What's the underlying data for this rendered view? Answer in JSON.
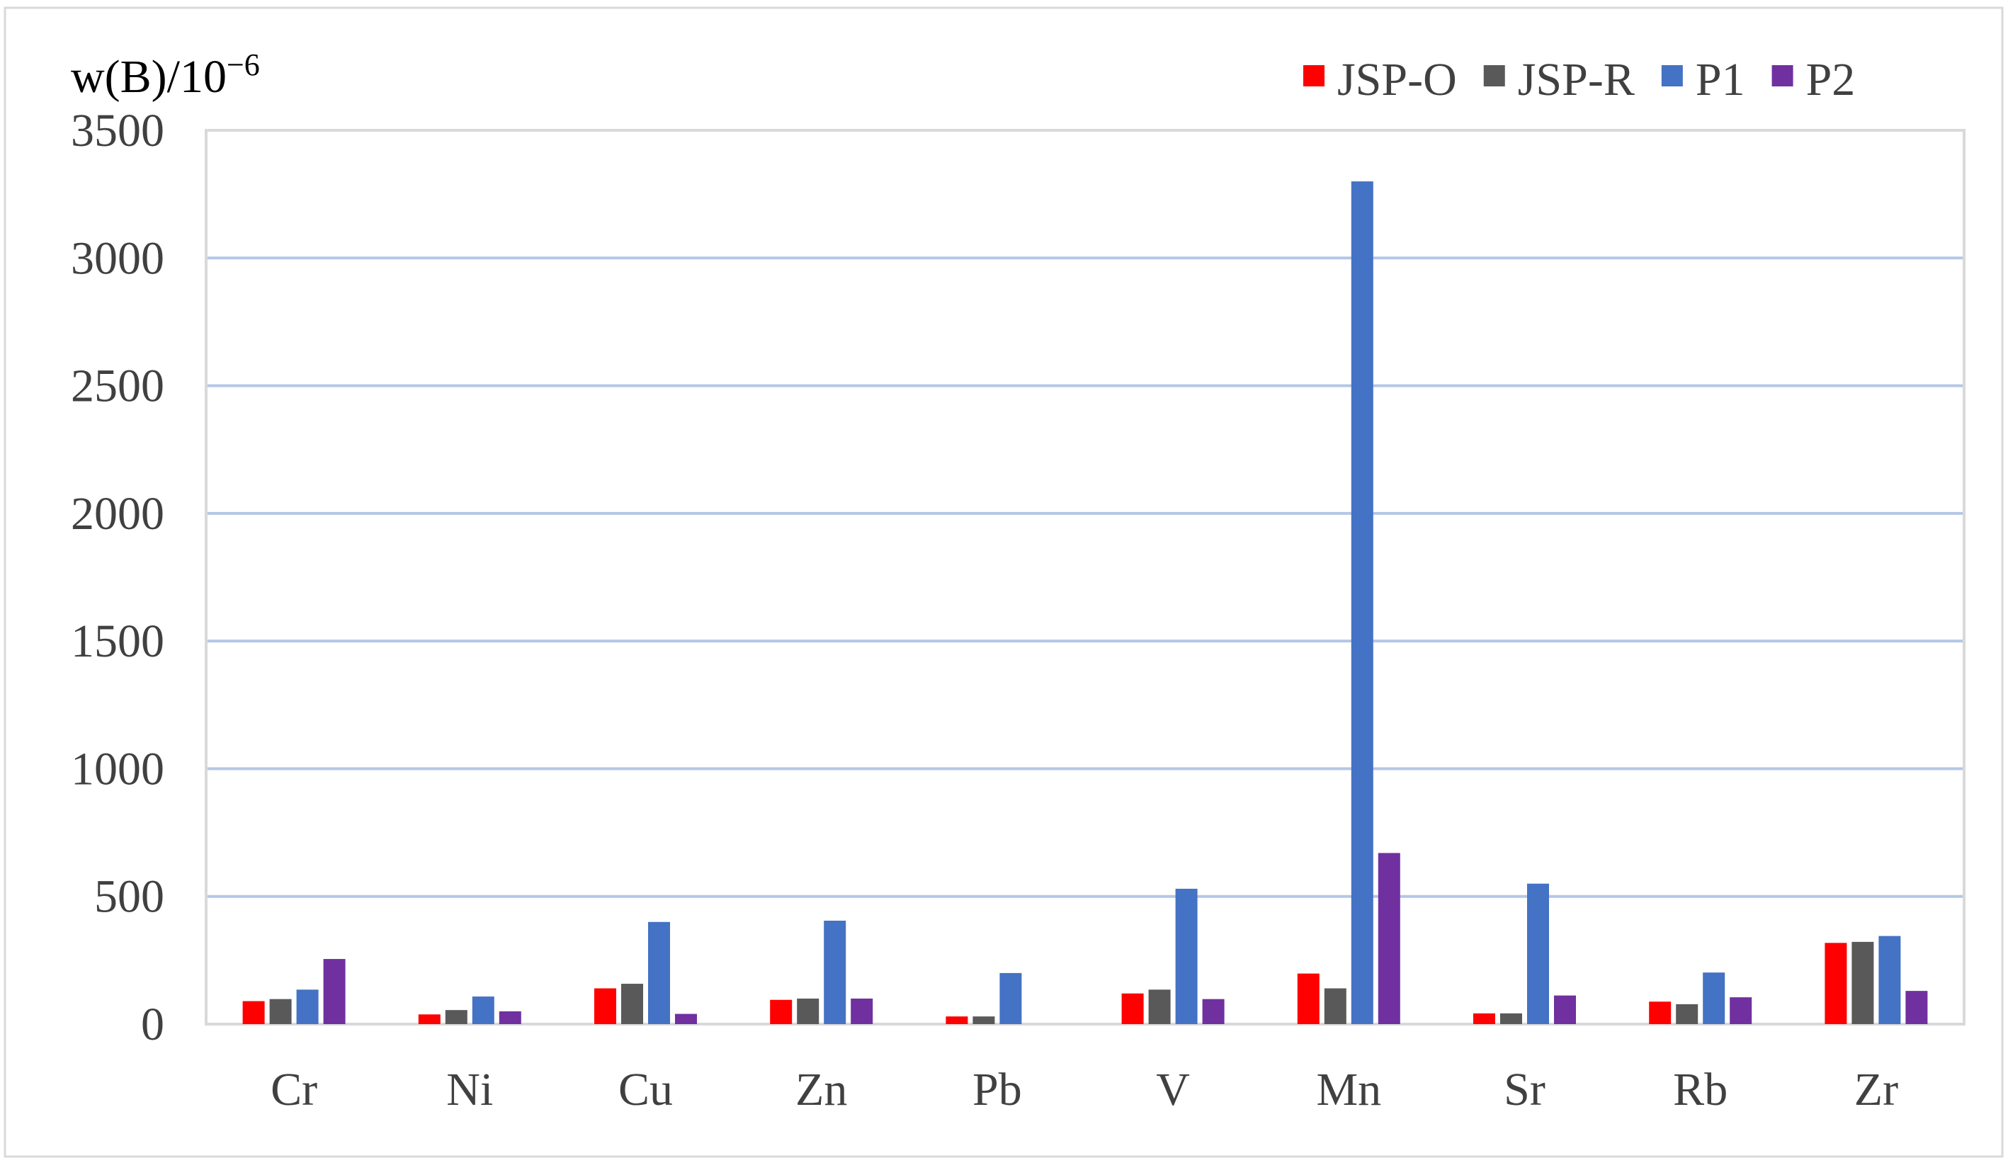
{
  "chart_data": {
    "type": "bar",
    "ylabel_base": "w(B)/10",
    "ylabel_exp": "−6",
    "categories": [
      "Cr",
      "Ni",
      "Cu",
      "Zn",
      "Pb",
      "V",
      "Mn",
      "Sr",
      "Rb",
      "Zr"
    ],
    "yticks": [
      "0",
      "500",
      "1000",
      "1500",
      "2000",
      "2500",
      "3000",
      "3500"
    ],
    "ylim": [
      0,
      3500
    ],
    "grid": true,
    "legend_position": "top-right",
    "series": [
      {
        "name": "JSP-O",
        "color": "#ff0000",
        "values": [
          90,
          38,
          140,
          95,
          30,
          120,
          198,
          42,
          88,
          318
        ]
      },
      {
        "name": "JSP-R",
        "color": "#595959",
        "values": [
          98,
          55,
          158,
          100,
          30,
          135,
          140,
          42,
          78,
          322
        ]
      },
      {
        "name": "P1",
        "color": "#4472c4",
        "values": [
          135,
          108,
          400,
          405,
          200,
          530,
          3300,
          550,
          202,
          345
        ]
      },
      {
        "name": "P2",
        "color": "#7030a0",
        "values": [
          255,
          50,
          40,
          100,
          0,
          98,
          670,
          112,
          105,
          130
        ]
      }
    ]
  }
}
